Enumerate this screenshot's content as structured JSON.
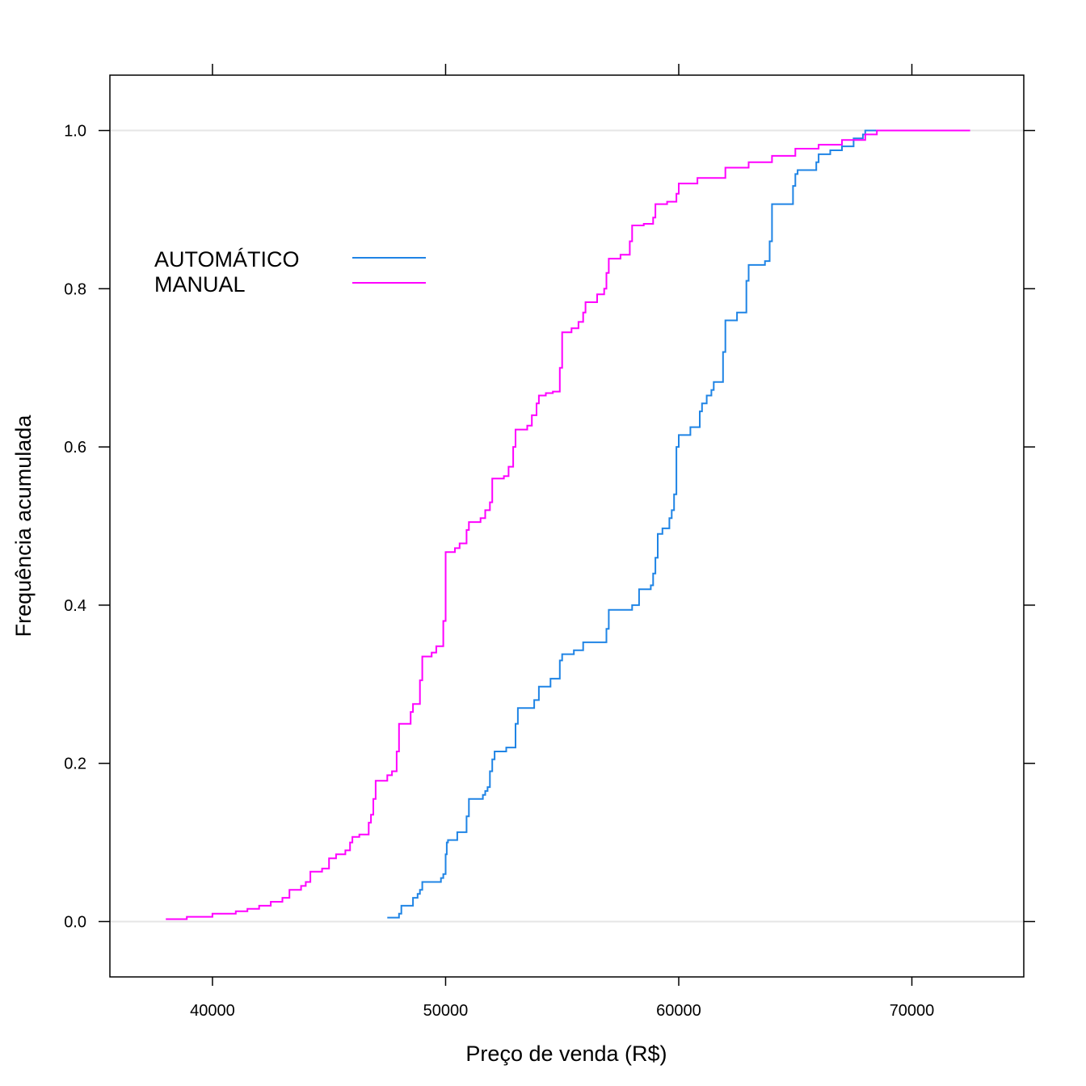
{
  "chart_data": {
    "type": "line",
    "subtype": "empirical-cumulative-distribution-step",
    "xlabel": "Preço de venda (R$)",
    "ylabel": "Frequência acumulada",
    "xlim": [
      35600,
      74800
    ],
    "ylim": [
      -0.07,
      1.07
    ],
    "xticks": [
      40000,
      50000,
      60000,
      70000
    ],
    "xtick_labels": [
      "40000",
      "50000",
      "60000",
      "70000"
    ],
    "yticks": [
      0.0,
      0.2,
      0.4,
      0.6,
      0.8,
      1.0
    ],
    "ytick_labels": [
      "0.0",
      "0.2",
      "0.4",
      "0.6",
      "0.8",
      "1.0"
    ],
    "reference_lines": [
      0,
      1
    ],
    "legend_position": "top-left",
    "series": [
      {
        "name": "AUTOMÁTICO",
        "color": "#1f84e5",
        "points": [
          [
            47500,
            0.005
          ],
          [
            48000,
            0.01
          ],
          [
            48100,
            0.02
          ],
          [
            48600,
            0.03
          ],
          [
            48800,
            0.035
          ],
          [
            48900,
            0.04
          ],
          [
            49000,
            0.05
          ],
          [
            49800,
            0.055
          ],
          [
            49900,
            0.06
          ],
          [
            50000,
            0.085
          ],
          [
            50050,
            0.1
          ],
          [
            50100,
            0.103
          ],
          [
            50500,
            0.113
          ],
          [
            50900,
            0.133
          ],
          [
            51000,
            0.155
          ],
          [
            51600,
            0.16
          ],
          [
            51700,
            0.165
          ],
          [
            51800,
            0.17
          ],
          [
            51900,
            0.19
          ],
          [
            52000,
            0.205
          ],
          [
            52100,
            0.215
          ],
          [
            52600,
            0.22
          ],
          [
            53000,
            0.25
          ],
          [
            53100,
            0.27
          ],
          [
            53800,
            0.28
          ],
          [
            54000,
            0.297
          ],
          [
            54500,
            0.307
          ],
          [
            54900,
            0.33
          ],
          [
            55000,
            0.338
          ],
          [
            55500,
            0.343
          ],
          [
            55900,
            0.353
          ],
          [
            56900,
            0.37
          ],
          [
            57000,
            0.394
          ],
          [
            58000,
            0.4
          ],
          [
            58300,
            0.42
          ],
          [
            58800,
            0.425
          ],
          [
            58900,
            0.44
          ],
          [
            59000,
            0.46
          ],
          [
            59100,
            0.49
          ],
          [
            59300,
            0.497
          ],
          [
            59600,
            0.51
          ],
          [
            59700,
            0.52
          ],
          [
            59800,
            0.54
          ],
          [
            59900,
            0.6
          ],
          [
            60000,
            0.615
          ],
          [
            60500,
            0.625
          ],
          [
            60900,
            0.645
          ],
          [
            61000,
            0.655
          ],
          [
            61200,
            0.665
          ],
          [
            61400,
            0.672
          ],
          [
            61500,
            0.682
          ],
          [
            61900,
            0.72
          ],
          [
            62000,
            0.76
          ],
          [
            62500,
            0.77
          ],
          [
            62900,
            0.81
          ],
          [
            63000,
            0.83
          ],
          [
            63700,
            0.835
          ],
          [
            63900,
            0.86
          ],
          [
            64000,
            0.907
          ],
          [
            64900,
            0.93
          ],
          [
            65000,
            0.945
          ],
          [
            65100,
            0.95
          ],
          [
            65900,
            0.96
          ],
          [
            66000,
            0.97
          ],
          [
            66500,
            0.975
          ],
          [
            67000,
            0.98
          ],
          [
            67500,
            0.99
          ],
          [
            67900,
            0.995
          ],
          [
            68000,
            1.0
          ],
          [
            68500,
            1.0
          ]
        ]
      },
      {
        "name": "MANUAL",
        "color": "#ff00ff",
        "points": [
          [
            38000,
            0.003
          ],
          [
            38900,
            0.006
          ],
          [
            40000,
            0.01
          ],
          [
            41000,
            0.013
          ],
          [
            41500,
            0.016
          ],
          [
            42000,
            0.02
          ],
          [
            42500,
            0.025
          ],
          [
            43000,
            0.03
          ],
          [
            43300,
            0.04
          ],
          [
            43800,
            0.045
          ],
          [
            44000,
            0.05
          ],
          [
            44200,
            0.063
          ],
          [
            44700,
            0.067
          ],
          [
            45000,
            0.08
          ],
          [
            45300,
            0.085
          ],
          [
            45700,
            0.09
          ],
          [
            45900,
            0.1
          ],
          [
            46000,
            0.107
          ],
          [
            46300,
            0.11
          ],
          [
            46700,
            0.125
          ],
          [
            46800,
            0.135
          ],
          [
            46900,
            0.155
          ],
          [
            47000,
            0.178
          ],
          [
            47500,
            0.185
          ],
          [
            47700,
            0.19
          ],
          [
            47900,
            0.215
          ],
          [
            48000,
            0.25
          ],
          [
            48500,
            0.265
          ],
          [
            48600,
            0.275
          ],
          [
            48900,
            0.305
          ],
          [
            49000,
            0.335
          ],
          [
            49400,
            0.34
          ],
          [
            49600,
            0.348
          ],
          [
            49900,
            0.38
          ],
          [
            50000,
            0.467
          ],
          [
            50400,
            0.472
          ],
          [
            50600,
            0.478
          ],
          [
            50900,
            0.495
          ],
          [
            51000,
            0.505
          ],
          [
            51500,
            0.51
          ],
          [
            51700,
            0.52
          ],
          [
            51900,
            0.53
          ],
          [
            52000,
            0.56
          ],
          [
            52500,
            0.563
          ],
          [
            52700,
            0.575
          ],
          [
            52900,
            0.6
          ],
          [
            53000,
            0.622
          ],
          [
            53500,
            0.627
          ],
          [
            53700,
            0.64
          ],
          [
            53900,
            0.655
          ],
          [
            54000,
            0.665
          ],
          [
            54300,
            0.668
          ],
          [
            54600,
            0.67
          ],
          [
            54900,
            0.7
          ],
          [
            55000,
            0.745
          ],
          [
            55400,
            0.75
          ],
          [
            55700,
            0.758
          ],
          [
            55900,
            0.77
          ],
          [
            56000,
            0.783
          ],
          [
            56500,
            0.793
          ],
          [
            56800,
            0.8
          ],
          [
            56900,
            0.82
          ],
          [
            57000,
            0.838
          ],
          [
            57500,
            0.843
          ],
          [
            57900,
            0.86
          ],
          [
            58000,
            0.88
          ],
          [
            58500,
            0.882
          ],
          [
            58900,
            0.89
          ],
          [
            59000,
            0.907
          ],
          [
            59500,
            0.91
          ],
          [
            59900,
            0.92
          ],
          [
            60000,
            0.933
          ],
          [
            60800,
            0.94
          ],
          [
            62000,
            0.953
          ],
          [
            63000,
            0.96
          ],
          [
            64000,
            0.968
          ],
          [
            65000,
            0.977
          ],
          [
            66000,
            0.982
          ],
          [
            67000,
            0.988
          ],
          [
            68000,
            0.995
          ],
          [
            68500,
            1.0
          ],
          [
            72500,
            1.0
          ]
        ]
      }
    ]
  }
}
